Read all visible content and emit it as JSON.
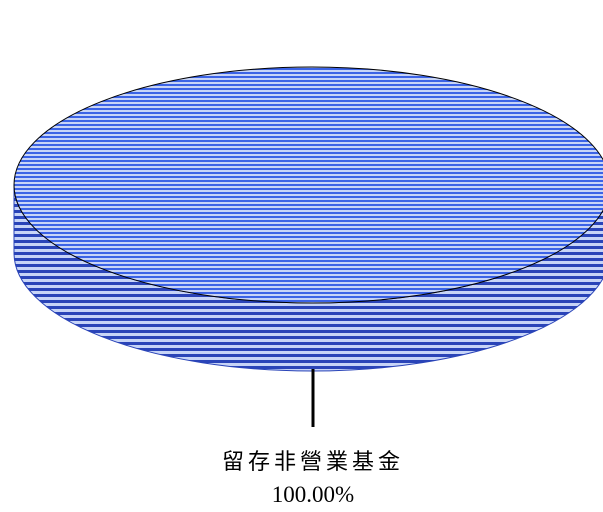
{
  "chart_data": {
    "type": "pie",
    "style": "3d",
    "slices": [
      {
        "label": "留存非營業基金",
        "percent_label": "100.00%",
        "value": 100.0
      }
    ],
    "colors": {
      "slice_fill": "#3b63e6",
      "stripe_light": "#c7d4f7",
      "side_dark": "#2a44b8",
      "outline": "#000000",
      "leader_line": "#000000"
    }
  }
}
